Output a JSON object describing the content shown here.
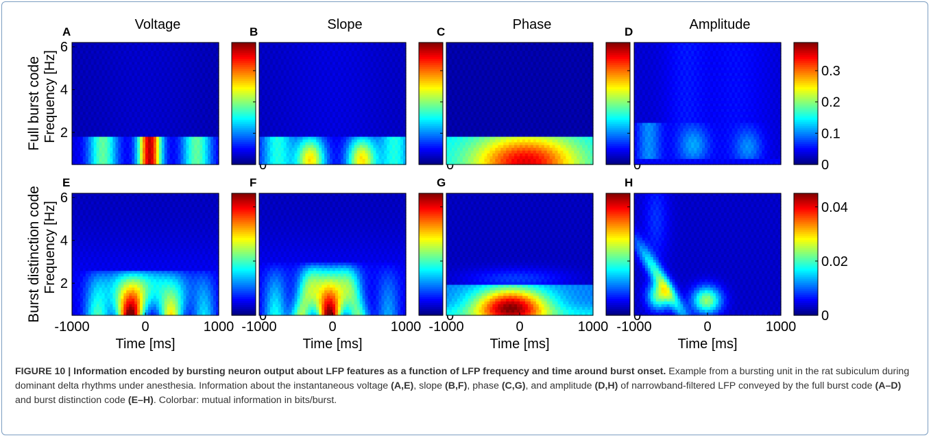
{
  "colors": {
    "frame_border": "#7a9cc0",
    "colormap": "jet",
    "caption_text": "#333333"
  },
  "row_labels": [
    "Full burst code",
    "Burst distinction code"
  ],
  "chart_data": [
    {
      "panel": "A",
      "title": "Voltage",
      "type": "heatmap",
      "feature": "voltage",
      "xlim": [
        -1000,
        1000
      ],
      "ylim": [
        0.5,
        6.2
      ],
      "ylabel": "Frequency [Hz]",
      "xlabel": "",
      "yticks": [
        "2",
        "4",
        "6"
      ],
      "xticks": [],
      "clim": [
        0,
        0.39
      ],
      "cticks": [
        "0",
        "0.1",
        "0.2",
        "0.3"
      ],
      "colorbar_label": "mutual information (bits/burst)"
    },
    {
      "panel": "B",
      "title": "Slope",
      "type": "heatmap",
      "feature": "slope",
      "xlim": [
        -1000,
        1000
      ],
      "ylim": [
        0.5,
        6.2
      ],
      "ylabel": "",
      "xlabel": "",
      "yticks": [],
      "xticks": [],
      "clim": [
        0,
        0.39
      ],
      "cticks": [
        "0",
        "0.1",
        "0.2",
        "0.3"
      ]
    },
    {
      "panel": "C",
      "title": "Phase",
      "type": "heatmap",
      "feature": "phase",
      "xlim": [
        -1000,
        1000
      ],
      "ylim": [
        0.5,
        6.2
      ],
      "ylabel": "",
      "xlabel": "",
      "yticks": [],
      "xticks": [],
      "clim": [
        0,
        0.39
      ],
      "cticks": [
        "0",
        "0.1",
        "0.2",
        "0.3"
      ]
    },
    {
      "panel": "D",
      "title": "Amplitude",
      "type": "heatmap",
      "feature": "amplitude",
      "xlim": [
        -1000,
        1000
      ],
      "ylim": [
        0.5,
        6.2
      ],
      "ylabel": "",
      "xlabel": "",
      "yticks": [],
      "xticks": [],
      "clim": [
        0,
        0.39
      ],
      "cticks": [
        "0",
        "0.1",
        "0.2",
        "0.3"
      ]
    },
    {
      "panel": "E",
      "title": "",
      "type": "heatmap",
      "feature": "voltage",
      "xlim": [
        -1000,
        1000
      ],
      "ylim": [
        0.5,
        6.2
      ],
      "ylabel": "Frequency [Hz]",
      "xlabel": "Time [ms]",
      "yticks": [
        "2",
        "4",
        "6"
      ],
      "xticks": [
        "-1000",
        "0",
        "1000"
      ],
      "clim": [
        0,
        0.045
      ],
      "cticks": [
        "0",
        "0.02",
        "0.04"
      ]
    },
    {
      "panel": "F",
      "title": "",
      "type": "heatmap",
      "feature": "slope",
      "xlim": [
        -1000,
        1000
      ],
      "ylim": [
        0.5,
        6.2
      ],
      "ylabel": "",
      "xlabel": "Time [ms]",
      "yticks": [],
      "xticks": [
        "-1000",
        "0",
        "1000"
      ],
      "clim": [
        0,
        0.045
      ],
      "cticks": [
        "0",
        "0.02",
        "0.04"
      ]
    },
    {
      "panel": "G",
      "title": "",
      "type": "heatmap",
      "feature": "phase",
      "xlim": [
        -1000,
        1000
      ],
      "ylim": [
        0.5,
        6.2
      ],
      "ylabel": "",
      "xlabel": "Time [ms]",
      "yticks": [],
      "xticks": [
        "-1000",
        "0",
        "1000"
      ],
      "clim": [
        0,
        0.045
      ],
      "cticks": [
        "0",
        "0.02",
        "0.04"
      ]
    },
    {
      "panel": "H",
      "title": "",
      "type": "heatmap",
      "feature": "amplitude",
      "xlim": [
        -1000,
        1000
      ],
      "ylim": [
        0.5,
        6.2
      ],
      "ylabel": "",
      "xlabel": "Time [ms]",
      "yticks": [],
      "xticks": [
        "-1000",
        "0",
        "1000"
      ],
      "clim": [
        0,
        0.045
      ],
      "cticks": [
        "0",
        "0.02",
        "0.04"
      ]
    }
  ],
  "caption": {
    "figure_label": "FIGURE 10 | Information encoded by bursting neuron output about LFP features as a function of LFP frequency and time around burst onset.",
    "t1": " Example from a bursting unit in the rat subiculum during dominant delta rhythms under anesthesia. Information about the instantaneous voltage ",
    "r1": "(A,E)",
    "t2": ", slope ",
    "r2": "(B,F)",
    "t3": ", phase ",
    "r3": "(C,G)",
    "t4": ", and amplitude ",
    "r4": "(D,H)",
    "t5": " of narrowband-filtered LFP conveyed by the full burst code ",
    "r5": "(A–D)",
    "t6": " and burst distinction code ",
    "r6": "(E–H)",
    "t7": ". Colorbar: mutual information in bits/burst."
  }
}
